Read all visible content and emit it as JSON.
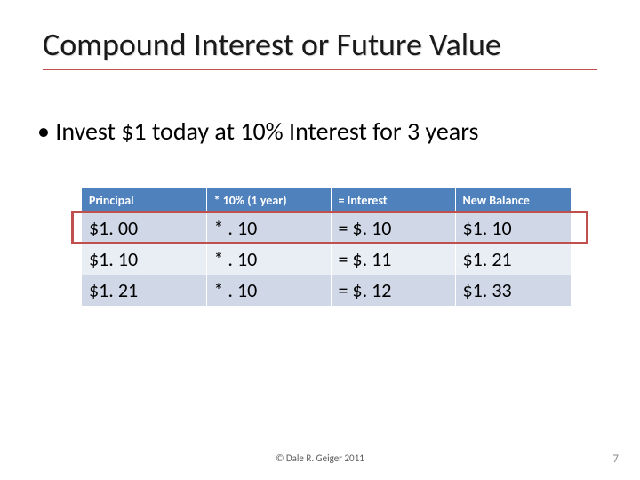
{
  "title": "Compound Interest or Future Value",
  "bullet": "Invest $1 today at 10% Interest for 3 years",
  "table": {
    "columns": [
      "Principal",
      "* 10%  (1 year)",
      "= Interest",
      "New Balance"
    ],
    "rows": [
      [
        "$1. 00",
        "* . 10",
        "= $. 10",
        "$1. 10"
      ],
      [
        "$1. 10",
        "* . 10",
        "= $. 11",
        "$1. 21"
      ],
      [
        "$1. 21",
        "* . 10",
        "= $. 12",
        "$1. 33"
      ]
    ],
    "header_bg": "#4f81bd",
    "header_fg": "#ffffff",
    "band_colors": [
      "#d0d8e8",
      "#e9edf4"
    ],
    "header_fontsize": 14,
    "cell_fontsize": 22,
    "highlight_row": 0,
    "highlight_color": "#c0504d"
  },
  "copyright": "© Dale R. Geiger 2011",
  "page_number": "7",
  "title_underline_color": "#c0504d",
  "background_color": "#ffffff"
}
